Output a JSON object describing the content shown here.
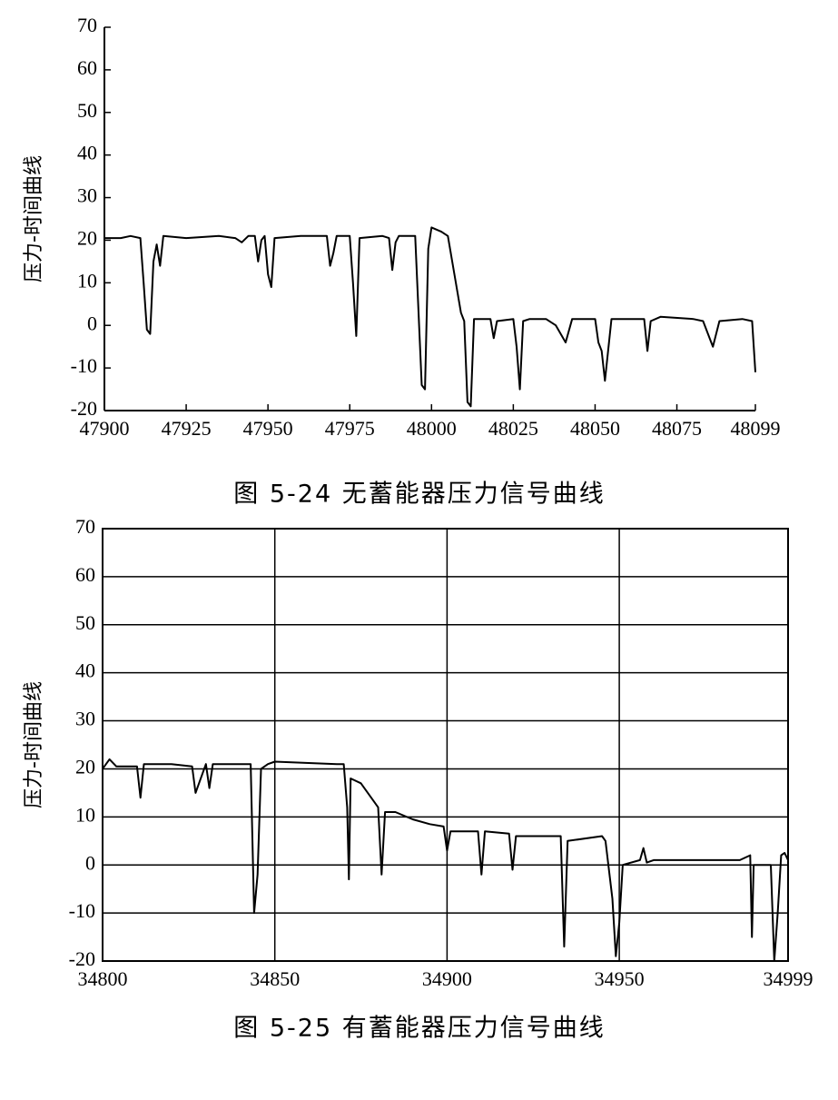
{
  "chart_data": [
    {
      "type": "line",
      "ylabel": "压力-时间曲线",
      "caption": "图 5-24  无蓄能器压力信号曲线",
      "x": [
        47900,
        47905,
        47908,
        47911,
        47912,
        47913,
        47914,
        47915,
        47916,
        47917,
        47918,
        47925,
        47935,
        47940,
        47942,
        47944,
        47946,
        47947,
        47948,
        47949,
        47950,
        47951,
        47952,
        47960,
        47968,
        47969,
        47970,
        47971,
        47975,
        47976,
        47977,
        47978,
        47985,
        47987,
        47988,
        47989,
        47990,
        47995,
        47997,
        47998,
        47999,
        48000,
        48003,
        48005,
        48007,
        48009,
        48010,
        48011,
        48012,
        48013,
        48018,
        48019,
        48020,
        48025,
        48026,
        48027,
        48028,
        48030,
        48035,
        48038,
        48041,
        48043,
        48050,
        48051,
        48052,
        48053,
        48055,
        48065,
        48066,
        48067,
        48070,
        48080,
        48083,
        48086,
        48088,
        48095,
        48098,
        48099
      ],
      "values": [
        20.5,
        20.5,
        21,
        20.5,
        10,
        -1,
        -2,
        15,
        19,
        14,
        21,
        20.5,
        21,
        20.5,
        19.5,
        21,
        21,
        15,
        20,
        21,
        12,
        9,
        20.5,
        21,
        21,
        14,
        17,
        21,
        21,
        10,
        -2.5,
        20.5,
        21,
        20.5,
        13,
        19.5,
        21,
        21,
        -14,
        -15,
        18,
        23,
        22,
        21,
        12,
        3,
        1,
        -18,
        -19,
        1.5,
        1.5,
        -3,
        1,
        1.5,
        -5,
        -15,
        1,
        1.5,
        1.5,
        0,
        -4,
        1.5,
        1.5,
        -4,
        -6,
        -13,
        1.5,
        1.5,
        -6,
        1,
        2,
        1.5,
        1,
        -5,
        1,
        1.5,
        1,
        -11
      ],
      "color": "#000000",
      "xlim": [
        47900,
        48099
      ],
      "xticks": [
        47900,
        47925,
        47950,
        47975,
        48000,
        48025,
        48050,
        48075,
        48099
      ],
      "ylim": [
        -20,
        70
      ],
      "yticks": [
        -20,
        -10,
        0,
        10,
        20,
        30,
        40,
        50,
        60,
        70
      ],
      "grid": false
    },
    {
      "type": "line",
      "ylabel": "压力-时间曲线",
      "caption": "图 5-25  有蓄能器压力信号曲线",
      "x": [
        34800,
        34802,
        34804,
        34806,
        34810,
        34811,
        34812,
        34820,
        34826,
        34827,
        34828,
        34830,
        34831,
        34832,
        34843,
        34844,
        34845,
        34846,
        34848,
        34850,
        34868,
        34870,
        34871,
        34871.5,
        34872,
        34875,
        34880,
        34881,
        34882,
        34885,
        34890,
        34895,
        34899,
        34900,
        34901,
        34909,
        34910,
        34911,
        34918,
        34919,
        34920,
        34933,
        34934,
        34935,
        34945,
        34946,
        34948,
        34949,
        34950,
        34951,
        34956,
        34957,
        34958,
        34960,
        34985,
        34988,
        34988.5,
        34989,
        34994,
        34995,
        34996,
        34997,
        34998,
        34999
      ],
      "values": [
        20,
        22,
        20.5,
        20.5,
        20.5,
        14,
        21,
        21,
        20.5,
        15,
        17,
        21,
        16,
        21,
        21,
        -10,
        -2,
        20,
        21,
        21.5,
        21,
        21,
        12,
        -3,
        18,
        17,
        12,
        -2,
        11,
        11,
        9.5,
        8.5,
        8,
        3,
        7,
        7,
        -2,
        7,
        6.5,
        -1,
        6,
        6,
        -17,
        5,
        6,
        5,
        -7,
        -19,
        -12,
        0,
        1,
        3.5,
        0.5,
        1,
        1,
        2,
        -15,
        0,
        0,
        -20,
        -10,
        2,
        2.5,
        1
      ],
      "color": "#000000",
      "xlim": [
        34800,
        34999
      ],
      "xticks": [
        34800,
        34850,
        34900,
        34950,
        34999
      ],
      "ylim": [
        -20,
        70
      ],
      "yticks": [
        -20,
        -10,
        0,
        10,
        20,
        30,
        40,
        50,
        60,
        70
      ],
      "grid": true
    }
  ]
}
